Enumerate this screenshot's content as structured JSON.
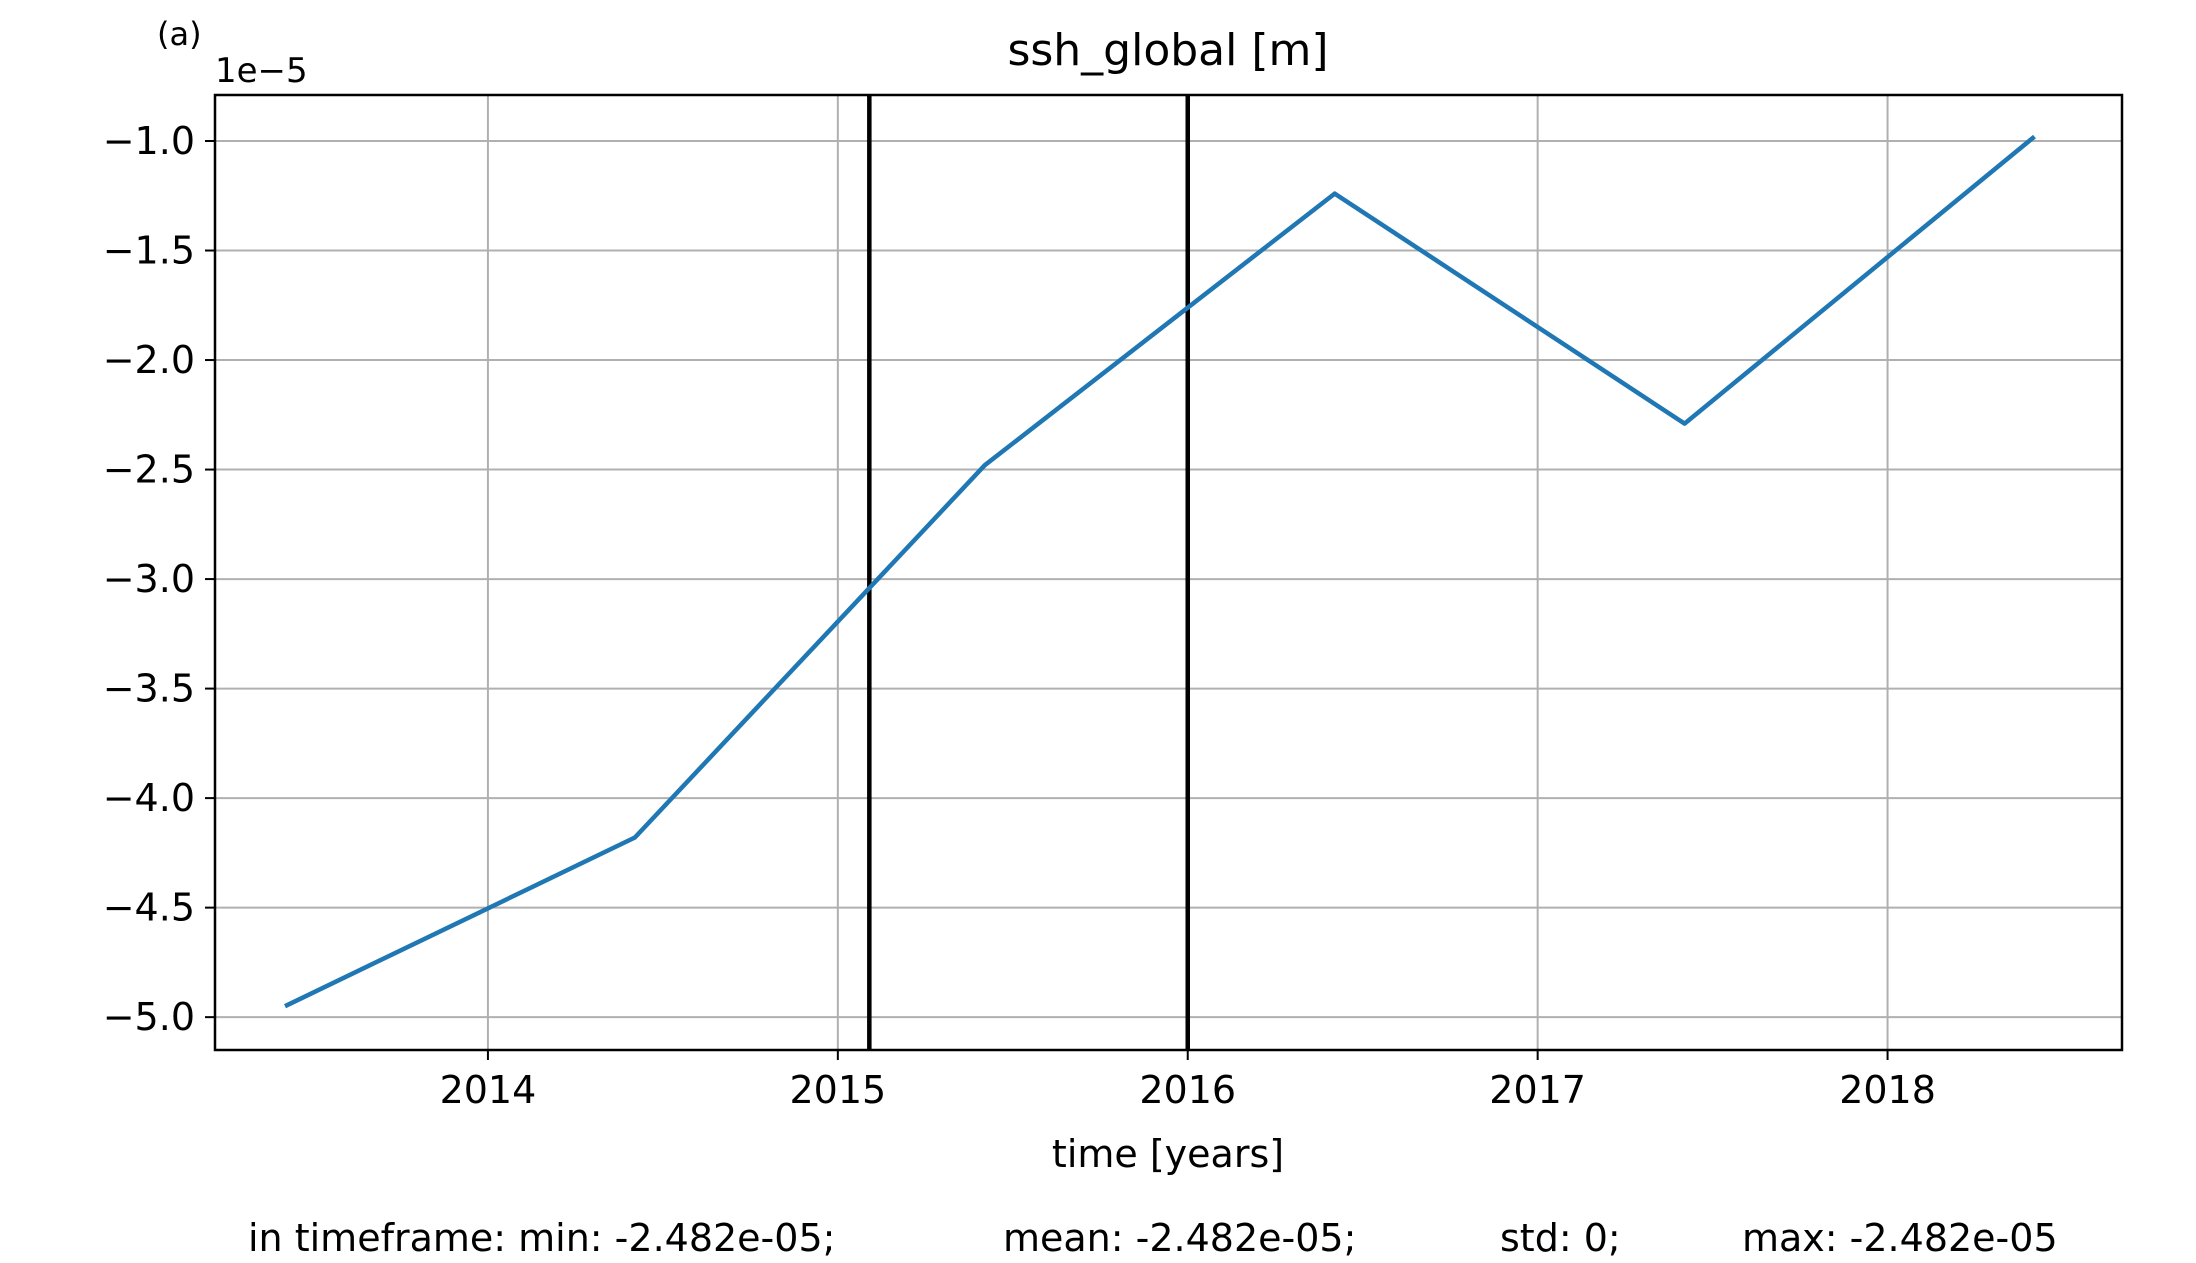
{
  "panel_label": "(a)",
  "chart_data": {
    "type": "line",
    "title": "ssh_global [m]",
    "xlabel": "time [years]",
    "ylabel": "",
    "y_scale_label": "1e−5",
    "xlim": [
      2013.22,
      2018.67
    ],
    "ylim": [
      -5.15,
      -0.79
    ],
    "x_ticks": [
      2014,
      2015,
      2016,
      2017,
      2018
    ],
    "x_tick_labels": [
      "2014",
      "2015",
      "2016",
      "2017",
      "2018"
    ],
    "y_ticks": [
      -1.0,
      -1.5,
      -2.0,
      -2.5,
      -3.0,
      -3.5,
      -4.0,
      -4.5,
      -5.0
    ],
    "y_tick_labels": [
      "−1.0",
      "−1.5",
      "−2.0",
      "−2.5",
      "−3.0",
      "−3.5",
      "−4.0",
      "−4.5",
      "−5.0"
    ],
    "grid": true,
    "series": [
      {
        "color": "#1f77b4",
        "x": [
          2013.42,
          2014.42,
          2015.42,
          2016.42,
          2017.42,
          2018.42
        ],
        "y": [
          -4.95,
          -4.18,
          -2.48,
          -1.24,
          -2.29,
          -0.98
        ]
      }
    ],
    "vlines": [
      {
        "x": 2015.09,
        "color": "#000000"
      },
      {
        "x": 2016.0,
        "color": "#000000"
      }
    ]
  },
  "stats": {
    "prefix": "in timeframe: min: -2.482e-05;",
    "mean": "mean: -2.482e-05;",
    "std": "std: 0;",
    "max": "max: -2.482e-05"
  }
}
